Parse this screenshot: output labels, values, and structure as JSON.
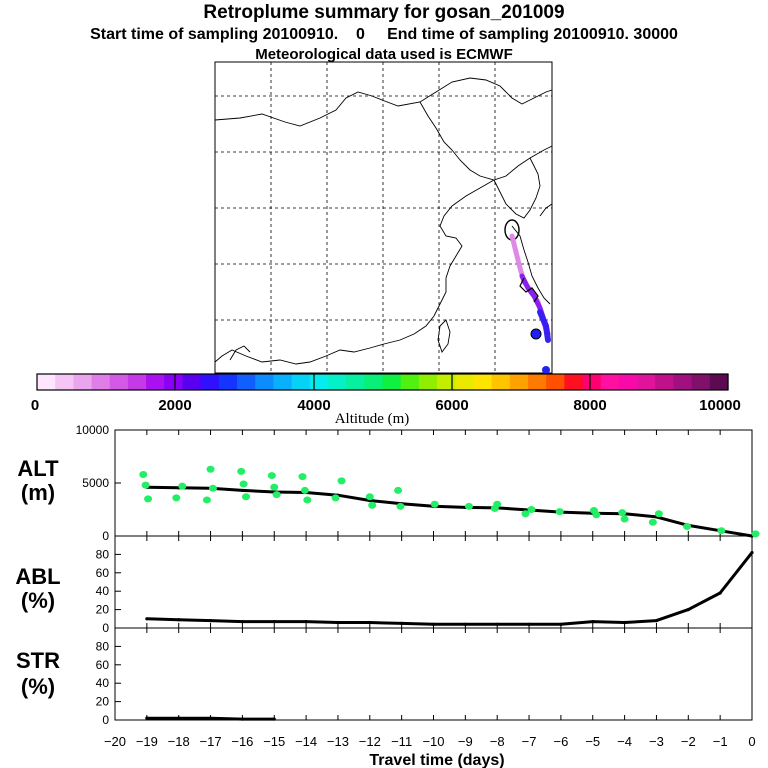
{
  "title": "Retroplume summary for gosan_201009",
  "subtitle_line1": "Start time of sampling 20100910.    0     End time of sampling 20100910. 30000",
  "subtitle_line2": "Meteorological data used is ECMWF",
  "colorbar": {
    "label": "Altitude (m)",
    "tick_labels": [
      "0",
      "2000",
      "4000",
      "6000",
      "8000",
      "10000"
    ],
    "colors": [
      "#ffe6ff",
      "#f5c6f5",
      "#eaa5ef",
      "#e07ee8",
      "#d25ae6",
      "#c43ae6",
      "#aa10f0",
      "#8a00f5",
      "#5a00f0",
      "#3010ff",
      "#1535ff",
      "#1060ff",
      "#0d8cff",
      "#08b0ff",
      "#06d2f8",
      "#05ecee",
      "#05f0c8",
      "#06f0a0",
      "#08f078",
      "#10f040",
      "#50f010",
      "#90ee00",
      "#c4ee00",
      "#eaea00",
      "#ffe400",
      "#ffc400",
      "#ffa200",
      "#ff7a00",
      "#ff5000",
      "#ff1020",
      "#ff0070",
      "#ff10a0",
      "#f80aaa",
      "#e0149a",
      "#c0108a",
      "#a01080",
      "#80106a",
      "#5c0a52"
    ]
  },
  "map": {
    "trajectory_color": "#9a40ff"
  },
  "chart_data": [
    {
      "type": "scatter",
      "panel": "ALT",
      "ylabel": "ALT\n(m)",
      "ylabel_line1": "ALT",
      "ylabel_line2": "(m)",
      "ylim": [
        0,
        10000
      ],
      "yticks": [
        0,
        5000,
        10000
      ],
      "xlim": [
        -20,
        0
      ],
      "series": [
        {
          "name": "mean altitude",
          "style": "line",
          "color": "#000000",
          "x": [
            -19,
            -18,
            -17,
            -16,
            -15,
            -14,
            -13,
            -12,
            -11,
            -10,
            -9,
            -8,
            -7,
            -6,
            -5,
            -4,
            -3,
            -2,
            -1,
            0
          ],
          "y": [
            4600,
            4550,
            4500,
            4300,
            4150,
            4100,
            3850,
            3350,
            3050,
            2800,
            2700,
            2650,
            2450,
            2250,
            2150,
            2100,
            1800,
            1000,
            500,
            0
          ]
        },
        {
          "name": "particle altitudes",
          "style": "points",
          "color": "#22ee66",
          "x": [
            -19,
            -19,
            -19,
            -18,
            -18,
            -17,
            -17,
            -17,
            -16,
            -16,
            -16,
            -15,
            -15,
            -15,
            -14,
            -14,
            -14,
            -13,
            -13,
            -12,
            -12,
            -11,
            -11,
            -10,
            -9,
            -8,
            -8,
            -7,
            -7,
            -6,
            -5,
            -5,
            -4,
            -4,
            -3,
            -3,
            -2,
            -1,
            0
          ],
          "y": [
            5800,
            4800,
            3500,
            4700,
            3600,
            6300,
            4500,
            3400,
            6100,
            4900,
            3700,
            5700,
            4600,
            3900,
            5600,
            4300,
            3400,
            5200,
            3600,
            3700,
            2900,
            4300,
            2800,
            3000,
            2800,
            2600,
            3000,
            2500,
            2100,
            2300,
            2400,
            2000,
            2200,
            1600,
            2100,
            1300,
            900,
            500,
            200
          ]
        }
      ]
    },
    {
      "type": "line",
      "panel": "ABL",
      "ylabel": "ABL\n(%)",
      "ylabel_line1": "ABL",
      "ylabel_line2": "(%)",
      "ylim": [
        0,
        100
      ],
      "yticks": [
        0,
        20,
        40,
        60,
        80
      ],
      "xlim": [
        -20,
        0
      ],
      "series": [
        {
          "name": "fraction in ABL",
          "color": "#000000",
          "x": [
            -19,
            -18,
            -17,
            -16,
            -15,
            -14,
            -13,
            -12,
            -11,
            -10,
            -9,
            -8,
            -7,
            -6,
            -5,
            -4,
            -3,
            -2,
            -1,
            0
          ],
          "y": [
            10,
            9,
            8,
            7,
            7,
            7,
            6,
            6,
            5,
            4,
            4,
            4,
            4,
            4,
            7,
            6,
            8,
            20,
            38,
            82
          ]
        }
      ]
    },
    {
      "type": "line",
      "panel": "STR",
      "ylabel": "STR\n(%)",
      "ylabel_line1": "STR",
      "ylabel_line2": "(%)",
      "ylim": [
        0,
        100
      ],
      "yticks": [
        0,
        20,
        40,
        60,
        80
      ],
      "xlim": [
        -20,
        0
      ],
      "xlabel": "Travel time (days)",
      "xticks": [
        -20,
        -19,
        -18,
        -17,
        -16,
        -15,
        -14,
        -13,
        -12,
        -11,
        -10,
        -9,
        -8,
        -7,
        -6,
        -5,
        -4,
        -3,
        -2,
        -1,
        0
      ],
      "series": [
        {
          "name": "fraction in stratosphere",
          "color": "#000000",
          "x": [
            -19,
            -18,
            -17,
            -16,
            -15
          ],
          "y": [
            2,
            2,
            2,
            1,
            1
          ]
        }
      ]
    }
  ]
}
